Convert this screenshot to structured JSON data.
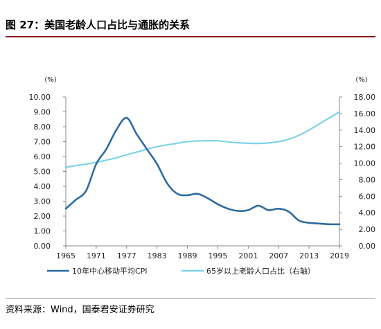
{
  "figure_title": "图 27：美国老龄人口占比与通胀的关系",
  "source_note": "资料来源：Wind，国泰君安证券研究",
  "colors": {
    "cpi": "#2e6aa3",
    "aging": "#7dd3e8",
    "axis": "#888888",
    "title_rule": "#8b1a1a"
  },
  "chart_data": {
    "type": "line",
    "left_axis": {
      "unit": "(%)",
      "ylim": [
        0,
        10
      ],
      "ticks": [
        "0.00",
        "1.00",
        "2.00",
        "3.00",
        "4.00",
        "5.00",
        "6.00",
        "7.00",
        "8.00",
        "9.00",
        "10.00"
      ]
    },
    "right_axis": {
      "unit": "(%)",
      "ylim": [
        0,
        18
      ],
      "ticks": [
        "0.00",
        "2.00",
        "4.00",
        "6.00",
        "8.00",
        "10.00",
        "12.00",
        "14.00",
        "16.00",
        "18.00"
      ]
    },
    "x_ticks": [
      "1965",
      "1971",
      "1977",
      "1983",
      "1989",
      "1995",
      "2001",
      "2007",
      "2013",
      "2019"
    ],
    "xlim": [
      1965,
      2019
    ],
    "grid": false,
    "legend_position": "bottom",
    "series": [
      {
        "name": "10年中心移动平均CPI",
        "axis": "left",
        "points": [
          [
            1965,
            2.5
          ],
          [
            1967,
            3.1
          ],
          [
            1969,
            3.7
          ],
          [
            1971,
            5.5
          ],
          [
            1973,
            6.5
          ],
          [
            1975,
            7.8
          ],
          [
            1977,
            8.6
          ],
          [
            1979,
            7.5
          ],
          [
            1981,
            6.5
          ],
          [
            1983,
            5.5
          ],
          [
            1985,
            4.2
          ],
          [
            1987,
            3.5
          ],
          [
            1989,
            3.4
          ],
          [
            1991,
            3.5
          ],
          [
            1993,
            3.2
          ],
          [
            1995,
            2.8
          ],
          [
            1997,
            2.5
          ],
          [
            1999,
            2.35
          ],
          [
            2001,
            2.4
          ],
          [
            2003,
            2.7
          ],
          [
            2005,
            2.4
          ],
          [
            2007,
            2.5
          ],
          [
            2009,
            2.3
          ],
          [
            2011,
            1.7
          ],
          [
            2013,
            1.55
          ],
          [
            2015,
            1.5
          ],
          [
            2017,
            1.45
          ],
          [
            2019,
            1.45
          ]
        ]
      },
      {
        "name": "65岁以上老龄人口占比（右轴）",
        "axis": "right",
        "points": [
          [
            1965,
            9.5
          ],
          [
            1968,
            9.8
          ],
          [
            1971,
            10.1
          ],
          [
            1974,
            10.5
          ],
          [
            1977,
            11.0
          ],
          [
            1980,
            11.5
          ],
          [
            1983,
            12.0
          ],
          [
            1986,
            12.3
          ],
          [
            1989,
            12.6
          ],
          [
            1992,
            12.7
          ],
          [
            1995,
            12.7
          ],
          [
            1998,
            12.5
          ],
          [
            2001,
            12.4
          ],
          [
            2004,
            12.4
          ],
          [
            2007,
            12.6
          ],
          [
            2010,
            13.1
          ],
          [
            2013,
            14.0
          ],
          [
            2016,
            15.1
          ],
          [
            2019,
            16.2
          ]
        ]
      }
    ]
  }
}
